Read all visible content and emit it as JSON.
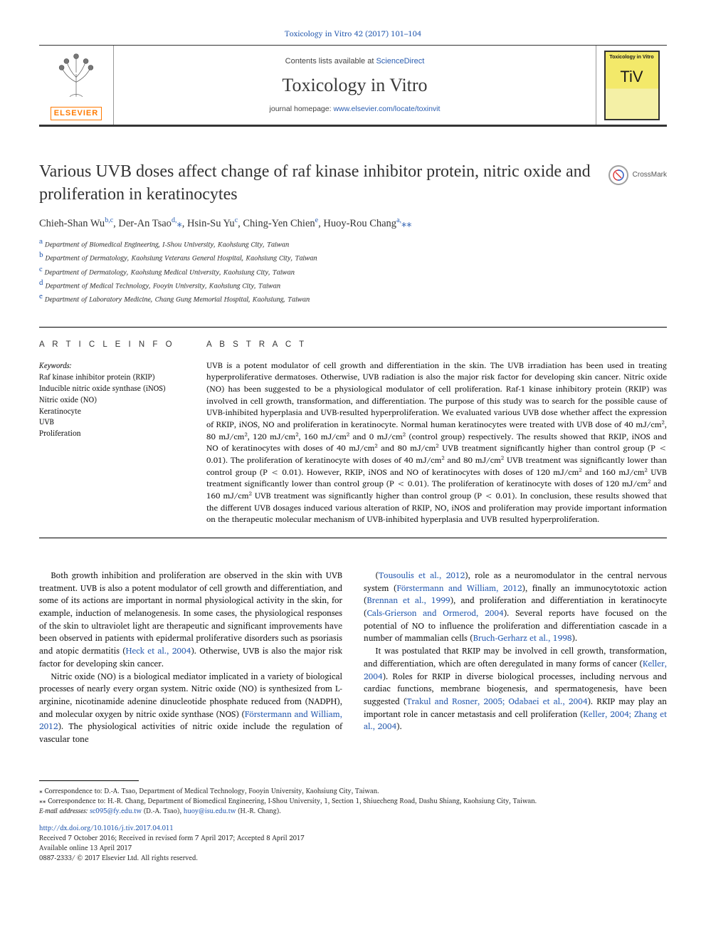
{
  "top_ref": "Toxicology in Vitro 42 (2017) 101–104",
  "header": {
    "contents_prefix": "Contents lists available at ",
    "contents_link": "ScienceDirect",
    "journal_title": "Toxicology in Vitro",
    "homepage_prefix": "journal homepage: ",
    "homepage_link": "www.elsevier.com/locate/toxinvit",
    "publisher_label": "ELSEVIER",
    "cover_title": "Toxicology in Vitro",
    "cover_sub": "TiV"
  },
  "crossmark_label": "CrossMark",
  "article_title": "Various UVB doses affect change of raf kinase inhibitor protein, nitric oxide and proliferation in keratinocytes",
  "authors_html": "Chieh-Shan Wu<sup>b,c</sup>, Der-An Tsao<sup>d,</sup><span class='corr-mark'>⁎</span>, Hsin-Su Yu<sup>c</sup>, Ching-Yen Chien<sup>e</sup>, Huoy-Rou Chang<sup>a,</sup><span class='corr-mark'>⁎⁎</span>",
  "affiliations": [
    {
      "sup": "a",
      "text": "Department of Biomedical Engineering, I-Shou University, Kaohsiung City, Taiwan"
    },
    {
      "sup": "b",
      "text": "Department of Dermatology, Kaohsiung Veterans General Hospital, Kaohsiung City, Taiwan"
    },
    {
      "sup": "c",
      "text": "Department of Dermatology, Kaohsiung Medical University, Kaohsiung City, Taiwan"
    },
    {
      "sup": "d",
      "text": "Department of Medical Technology, Fooyin University, Kaohsiung City, Taiwan"
    },
    {
      "sup": "e",
      "text": "Department of Laboratory Medicine, Chang Gung Memorial Hospital, Kaohsiung, Taiwan"
    }
  ],
  "article_info_heading": "A R T I C L E  I N F O",
  "abstract_heading": "A B S T R A C T",
  "keywords_label": "Keywords:",
  "keywords": [
    "Raf kinase inhibitor protein (RKIP)",
    "Inducible nitric oxide synthase (iNOS)",
    "Nitric oxide (NO)",
    "Keratinocyte",
    "UVB",
    "Proliferation"
  ],
  "abstract": "UVB is a potent modulator of cell growth and differentiation in the skin. The UVB irradiation has been used in treating hyperproliferative dermatoses. Otherwise, UVB radiation is also the major risk factor for developing skin cancer. Nitric oxide (NO) has been suggested to be a physiological modulator of cell proliferation. Raf-1 kinase inhibitory protein (RKIP) was involved in cell growth, transformation, and differentiation. The purpose of this study was to search for the possible cause of UVB-inhibited hyperplasia and UVB-resulted hyperproliferation. We evaluated various UVB dose whether affect the expression of RKIP, iNOS, NO and proliferation in keratinocyte. Normal human keratinocytes were treated with UVB dose of 40 mJ/cm², 80 mJ/cm², 120 mJ/cm², 160 mJ/cm² and 0 mJ/cm² (control group) respectively. The results showed that RKIP, iNOS and NO of keratinocytes with doses of 40 mJ/cm² and 80 mJ/cm² UVB treatment significantly higher than control group (P < 0.01). The proliferation of keratinocyte with doses of 40 mJ/cm² and 80 mJ/cm² UVB treatment was significantly lower than control group (P < 0.01). However, RKIP, iNOS and NO of keratinocytes with doses of 120 mJ/cm² and 160 mJ/cm² UVB treatment significantly lower than control group (P < 0.01). The proliferation of keratinocyte with doses of 120 mJ/cm² and 160 mJ/cm² UVB treatment was significantly higher than control group (P < 0.01). In conclusion, these results showed that the different UVB dosages induced various alteration of RKIP, NO, iNOS and proliferation may provide important information on the therapeutic molecular mechanism of UVB-inhibited hyperplasia and UVB resulted hyperproliferation.",
  "body": {
    "left": [
      "Both growth inhibition and proliferation are observed in the skin with UVB treatment. UVB is also a potent modulator of cell growth and differentiation, and some of its actions are important in normal physiological activity in the skin, for example, induction of melanogenesis. In some cases, the physiological responses of the skin to ultraviolet light are therapeutic and significant improvements have been observed in patients with epidermal proliferative disorders such as psoriasis and atopic dermatitis (<span class='cite'>Heck et al., 2004</span>). Otherwise, UVB is also the major risk factor for developing skin cancer.",
      "Nitric oxide (NO) is a biological mediator implicated in a variety of biological processes of nearly every organ system. Nitric oxide (NO) is synthesized from L-arginine, nicotinamide adenine dinucleotide phosphate reduced from (NADPH), and molecular oxygen by nitric oxide synthase (NOS) (<span class='cite'>Förstermann and William, 2012</span>). The physiological activities of nitric oxide include the regulation of vascular tone"
    ],
    "right": [
      "(<span class='cite'>Tousoulis et al., 2012</span>), role as a neuromodulator in the central nervous system (<span class='cite'>Förstermann and William, 2012</span>), finally an immunocytotoxic action (<span class='cite'>Brennan et al., 1999</span>), and proliferation and differentiation in keratinocyte (<span class='cite'>Cals-Grierson and Ormerod, 2004</span>). Several reports have focused on the potential of NO to influence the proliferation and differentiation cascade in a number of mammalian cells (<span class='cite'>Bruch-Gerharz et al., 1998</span>).",
      "It was postulated that RKIP may be involved in cell growth, transformation, and differentiation, which are often deregulated in many forms of cancer (<span class='cite'>Keller, 2004</span>). Roles for RKIP in diverse biological processes, including nervous and cardiac functions, membrane biogenesis, and spermatogenesis, have been suggested (<span class='cite'>Trakul and Rosner, 2005; Odabaei et al., 2004</span>). RKIP may play an important role in cancer metastasis and cell proliferation (<span class='cite'>Keller, 2004; Zhang et al., 2004</span>)."
    ]
  },
  "footer": {
    "corr1": "⁎ Correspondence to: D.-A. Tsao, Department of Medical Technology, Fooyin University, Kaohsiung City, Taiwan.",
    "corr2": "⁎⁎ Correspondence to: H.-R. Chang, Department of Biomedical Engineering, I-Shou University, 1, Section 1, Shiuecheng Road, Dashu Shiang, Kaohsiung City, Taiwan.",
    "email_label": "E-mail addresses: ",
    "email1": "sc095@fy.edu.tw",
    "email1_who": " (D.-A. Tsao), ",
    "email2": "huoy@isu.edu.tw",
    "email2_who": " (H.-R. Chang).",
    "doi": "http://dx.doi.org/10.1016/j.tiv.2017.04.011",
    "received": "Received 7 October 2016; Received in revised form 7 April 2017; Accepted 8 April 2017",
    "available": "Available online 13 April 2017",
    "copyright": "0887-2333/ © 2017 Elsevier Ltd. All rights reserved."
  },
  "colors": {
    "link": "#2a5db0",
    "elsevier_orange": "#ff7a00",
    "text": "#1a1a1a",
    "rule": "#000000"
  },
  "typography": {
    "body_font": "Georgia/Times",
    "sans_font": "Arial",
    "title_size_pt": 18,
    "body_size_pt": 9,
    "abstract_size_pt": 8.5
  }
}
